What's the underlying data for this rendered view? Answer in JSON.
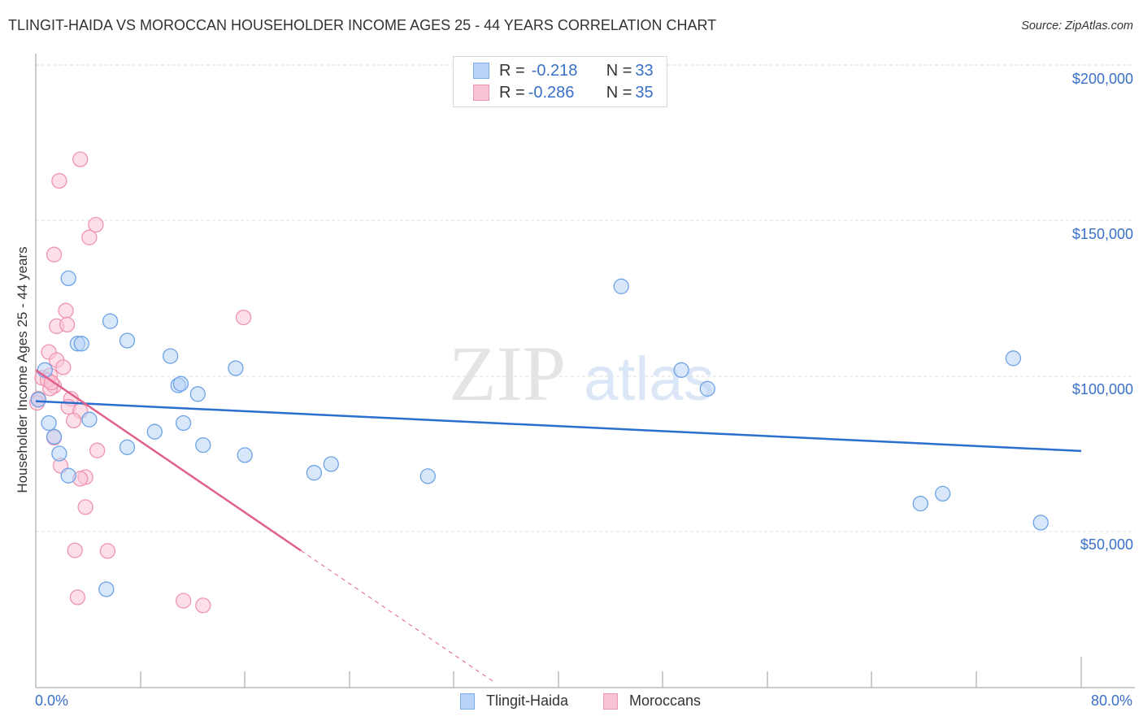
{
  "header": {
    "title": "TLINGIT-HAIDA VS MOROCCAN HOUSEHOLDER INCOME AGES 25 - 44 YEARS CORRELATION CHART",
    "source": "Source: ZipAtlas.com"
  },
  "watermark": {
    "zip": "ZIP",
    "atlas": "atlas"
  },
  "legend": {
    "series": [
      {
        "name": "Tlingit-Haida",
        "r_label": "R = ",
        "r_value": "-0.218",
        "n_label": "N = ",
        "n_value": "33",
        "color": "#7fb0ec",
        "fill": "#b8d3f5"
      },
      {
        "name": "Moroccans",
        "r_label": "R = ",
        "r_value": "-0.286",
        "n_label": "N = ",
        "n_value": "35",
        "color": "#ef94b0",
        "fill": "#f9c5d5"
      }
    ]
  },
  "axes": {
    "y_title": "Householder Income Ages 25 - 44 years",
    "y_ticks": [
      "$200,000",
      "$150,000",
      "$100,000",
      "$50,000"
    ],
    "x_min_label": "0.0%",
    "x_max_label": "80.0%"
  },
  "colors": {
    "blue_line": "#2a6fcf",
    "pink_line": "#e0608c",
    "tick_label": "#3a70c8",
    "grid": "#dddddd"
  },
  "chart_data": {
    "type": "scatter",
    "title": "TLINGIT-HAIDA VS MOROCCAN HOUSEHOLDER INCOME AGES 25 - 44 YEARS CORRELATION CHART",
    "xlabel": "",
    "ylabel": "Householder Income Ages 25 - 44 years",
    "xlim": [
      0,
      80
    ],
    "ylim": [
      0,
      220000
    ],
    "x_unit": "%",
    "y_ticks": [
      50000,
      100000,
      150000,
      200000
    ],
    "grid": true,
    "legend_position": "top-center and bottom",
    "series": [
      {
        "name": "Tlingit-Haida",
        "R": -0.218,
        "N": 33,
        "trend": {
          "x": [
            0,
            80
          ],
          "y": [
            92000,
            76000
          ],
          "style": "solid"
        },
        "points": [
          [
            0.7,
            102000
          ],
          [
            0.2,
            92500
          ],
          [
            2.5,
            131500
          ],
          [
            3.2,
            110500
          ],
          [
            3.5,
            110500
          ],
          [
            5.7,
            117700
          ],
          [
            7.0,
            111500
          ],
          [
            10.3,
            106500
          ],
          [
            10.9,
            97100
          ],
          [
            11.1,
            97600
          ],
          [
            12.4,
            94300
          ],
          [
            4.1,
            86100
          ],
          [
            1.4,
            80600
          ],
          [
            1.8,
            75200
          ],
          [
            2.5,
            68100
          ],
          [
            7.0,
            77200
          ],
          [
            9.1,
            82200
          ],
          [
            11.3,
            85000
          ],
          [
            12.8,
            77900
          ],
          [
            15.3,
            102600
          ],
          [
            16.0,
            74700
          ],
          [
            21.3,
            69000
          ],
          [
            22.6,
            71800
          ],
          [
            30.0,
            67900
          ],
          [
            5.4,
            31600
          ],
          [
            44.8,
            128900
          ],
          [
            49.4,
            102000
          ],
          [
            51.4,
            96000
          ],
          [
            67.7,
            59100
          ],
          [
            69.4,
            62300
          ],
          [
            74.8,
            105800
          ],
          [
            76.9,
            53000
          ],
          [
            1.0,
            85000
          ]
        ]
      },
      {
        "name": "Moroccans",
        "R": -0.286,
        "N": 35,
        "trend": {
          "x": [
            0,
            20.3
          ],
          "y": [
            102000,
            44000
          ],
          "style": "solid",
          "extended_dashed_to": [
            35.0,
            2000
          ]
        },
        "points": [
          [
            3.4,
            169700
          ],
          [
            1.8,
            162800
          ],
          [
            4.6,
            148700
          ],
          [
            4.1,
            144600
          ],
          [
            1.4,
            139100
          ],
          [
            2.3,
            121100
          ],
          [
            1.6,
            116100
          ],
          [
            2.4,
            116600
          ],
          [
            15.9,
            118900
          ],
          [
            1.0,
            107800
          ],
          [
            1.6,
            105200
          ],
          [
            2.1,
            102900
          ],
          [
            0.5,
            99500
          ],
          [
            1.1,
            100300
          ],
          [
            1.4,
            96900
          ],
          [
            1.1,
            96100
          ],
          [
            0.2,
            92800
          ],
          [
            2.7,
            92800
          ],
          [
            2.5,
            90200
          ],
          [
            3.4,
            88900
          ],
          [
            2.9,
            85800
          ],
          [
            4.7,
            76200
          ],
          [
            3.8,
            67600
          ],
          [
            3.4,
            67100
          ],
          [
            1.4,
            80300
          ],
          [
            1.9,
            71300
          ],
          [
            3.8,
            58000
          ],
          [
            3.0,
            44100
          ],
          [
            5.5,
            43900
          ],
          [
            3.2,
            29000
          ],
          [
            11.3,
            27900
          ],
          [
            12.8,
            26400
          ],
          [
            0.1,
            91500
          ],
          [
            0.9,
            98800
          ],
          [
            1.2,
            98000
          ]
        ]
      }
    ]
  }
}
